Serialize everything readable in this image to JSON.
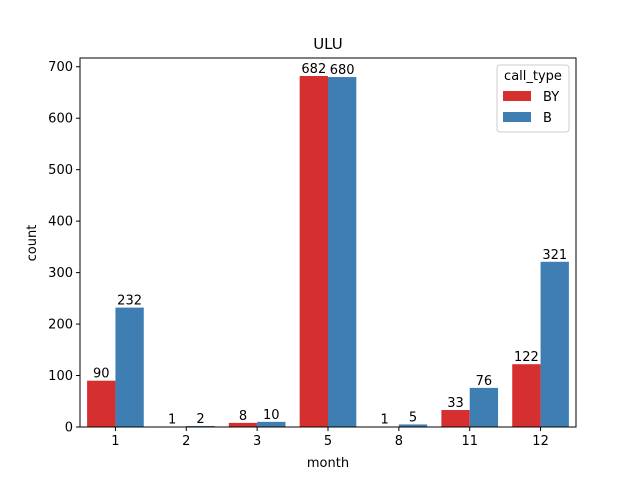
{
  "chart_data": {
    "type": "bar",
    "title": "ULU",
    "xlabel": "month",
    "ylabel": "count",
    "categories": [
      "1",
      "2",
      "3",
      "5",
      "8",
      "11",
      "12"
    ],
    "series": [
      {
        "name": "BY",
        "values": [
          90,
          1,
          8,
          682,
          1,
          33,
          122
        ],
        "color": "#d62f30"
      },
      {
        "name": "B",
        "values": [
          232,
          2,
          10,
          680,
          5,
          76,
          321
        ],
        "color": "#3f7eb3"
      }
    ],
    "ylim": [
      0,
      717
    ],
    "yticks": [
      0,
      100,
      200,
      300,
      400,
      500,
      600,
      700
    ],
    "legend": {
      "title": "call_type",
      "placement": "top-right"
    },
    "grid": false
  }
}
